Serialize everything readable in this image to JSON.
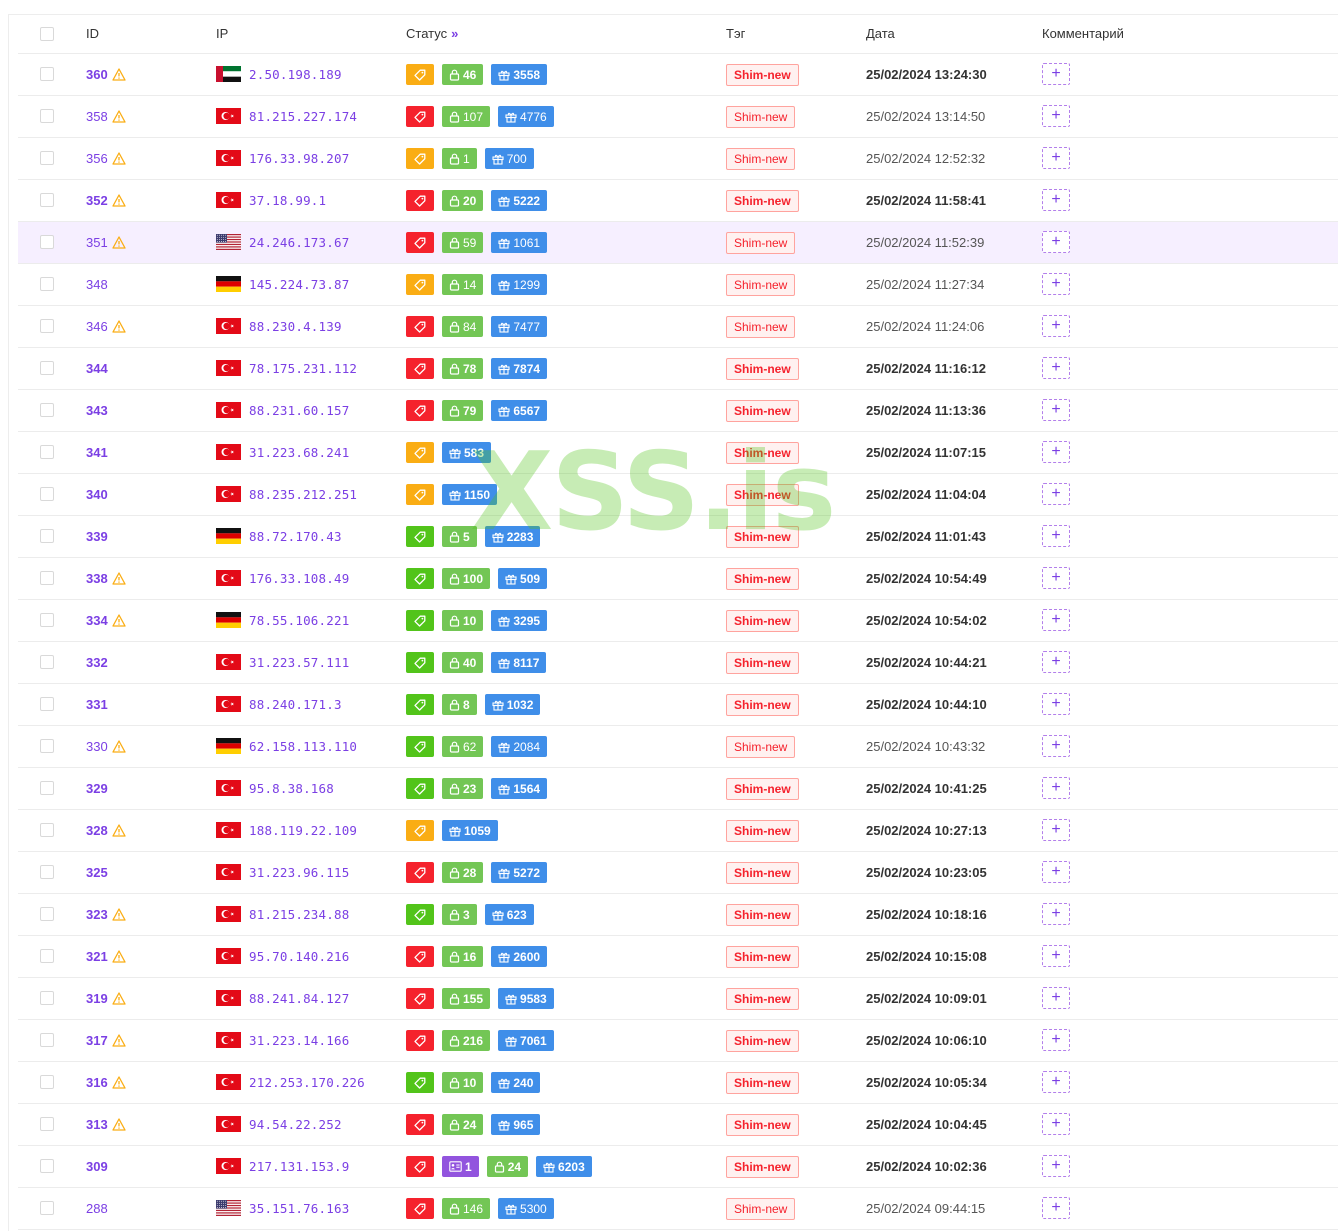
{
  "columns": {
    "id": "ID",
    "ip": "IP",
    "status": "Статус",
    "tag": "Тэг",
    "date": "Дата",
    "comment": "Комментарий"
  },
  "status_sort_icon": "double-chevron-right-icon",
  "add_comment_symbol": "+",
  "watermark": "XSS.is",
  "colors": {
    "accent": "#7b3fe4",
    "status_red": "#f5222d",
    "status_orange": "#faad14",
    "status_green": "#52c41a",
    "lock_green": "#73c655",
    "gift_blue": "#3f8ee9",
    "profile_purple": "#9254de"
  },
  "rows": [
    {
      "id": "360",
      "warn": true,
      "bold": true,
      "flag": "ae",
      "ip": "2.50.198.189",
      "status": "orange",
      "badges": [
        {
          "k": "lock",
          "v": "46"
        },
        {
          "k": "gift",
          "v": "3558"
        }
      ],
      "tag": "Shim-new",
      "date": "25/02/2024 13:24:30"
    },
    {
      "id": "358",
      "warn": true,
      "bold": false,
      "flag": "tr",
      "ip": "81.215.227.174",
      "status": "red",
      "badges": [
        {
          "k": "lock",
          "v": "107"
        },
        {
          "k": "gift",
          "v": "4776"
        }
      ],
      "tag": "Shim-new",
      "date": "25/02/2024 13:14:50"
    },
    {
      "id": "356",
      "warn": true,
      "bold": false,
      "flag": "tr",
      "ip": "176.33.98.207",
      "status": "orange",
      "badges": [
        {
          "k": "lock",
          "v": "1"
        },
        {
          "k": "gift",
          "v": "700"
        }
      ],
      "tag": "Shim-new",
      "date": "25/02/2024 12:52:32"
    },
    {
      "id": "352",
      "warn": true,
      "bold": true,
      "flag": "tr",
      "ip": "37.18.99.1",
      "status": "red",
      "badges": [
        {
          "k": "lock",
          "v": "20"
        },
        {
          "k": "gift",
          "v": "5222"
        }
      ],
      "tag": "Shim-new",
      "date": "25/02/2024 11:58:41"
    },
    {
      "id": "351",
      "warn": true,
      "bold": false,
      "flag": "us",
      "ip": "24.246.173.67",
      "status": "red",
      "badges": [
        {
          "k": "lock",
          "v": "59"
        },
        {
          "k": "gift",
          "v": "1061"
        }
      ],
      "tag": "Shim-new",
      "date": "25/02/2024 11:52:39",
      "hl": true
    },
    {
      "id": "348",
      "warn": false,
      "bold": false,
      "flag": "de",
      "ip": "145.224.73.87",
      "status": "orange",
      "badges": [
        {
          "k": "lock",
          "v": "14"
        },
        {
          "k": "gift",
          "v": "1299"
        }
      ],
      "tag": "Shim-new",
      "date": "25/02/2024 11:27:34"
    },
    {
      "id": "346",
      "warn": true,
      "bold": false,
      "flag": "tr",
      "ip": "88.230.4.139",
      "status": "red",
      "badges": [
        {
          "k": "lock",
          "v": "84"
        },
        {
          "k": "gift",
          "v": "7477"
        }
      ],
      "tag": "Shim-new",
      "date": "25/02/2024 11:24:06"
    },
    {
      "id": "344",
      "warn": false,
      "bold": true,
      "flag": "tr",
      "ip": "78.175.231.112",
      "status": "red",
      "badges": [
        {
          "k": "lock",
          "v": "78"
        },
        {
          "k": "gift",
          "v": "7874"
        }
      ],
      "tag": "Shim-new",
      "date": "25/02/2024 11:16:12"
    },
    {
      "id": "343",
      "warn": false,
      "bold": true,
      "flag": "tr",
      "ip": "88.231.60.157",
      "status": "red",
      "badges": [
        {
          "k": "lock",
          "v": "79"
        },
        {
          "k": "gift",
          "v": "6567"
        }
      ],
      "tag": "Shim-new",
      "date": "25/02/2024 11:13:36"
    },
    {
      "id": "341",
      "warn": false,
      "bold": true,
      "flag": "tr",
      "ip": "31.223.68.241",
      "status": "orange",
      "badges": [
        {
          "k": "gift",
          "v": "583"
        }
      ],
      "tag": "Shim-new",
      "date": "25/02/2024 11:07:15"
    },
    {
      "id": "340",
      "warn": false,
      "bold": true,
      "flag": "tr",
      "ip": "88.235.212.251",
      "status": "orange",
      "badges": [
        {
          "k": "gift",
          "v": "1150"
        }
      ],
      "tag": "Shim-new",
      "date": "25/02/2024 11:04:04"
    },
    {
      "id": "339",
      "warn": false,
      "bold": true,
      "flag": "de",
      "ip": "88.72.170.43",
      "status": "green",
      "badges": [
        {
          "k": "lock",
          "v": "5"
        },
        {
          "k": "gift",
          "v": "2283"
        }
      ],
      "tag": "Shim-new",
      "date": "25/02/2024 11:01:43"
    },
    {
      "id": "338",
      "warn": true,
      "bold": true,
      "flag": "tr",
      "ip": "176.33.108.49",
      "status": "green",
      "badges": [
        {
          "k": "lock",
          "v": "100"
        },
        {
          "k": "gift",
          "v": "509"
        }
      ],
      "tag": "Shim-new",
      "date": "25/02/2024 10:54:49"
    },
    {
      "id": "334",
      "warn": true,
      "bold": true,
      "flag": "de",
      "ip": "78.55.106.221",
      "status": "green",
      "badges": [
        {
          "k": "lock",
          "v": "10"
        },
        {
          "k": "gift",
          "v": "3295"
        }
      ],
      "tag": "Shim-new",
      "date": "25/02/2024 10:54:02"
    },
    {
      "id": "332",
      "warn": false,
      "bold": true,
      "flag": "tr",
      "ip": "31.223.57.111",
      "status": "green",
      "badges": [
        {
          "k": "lock",
          "v": "40"
        },
        {
          "k": "gift",
          "v": "8117"
        }
      ],
      "tag": "Shim-new",
      "date": "25/02/2024 10:44:21"
    },
    {
      "id": "331",
      "warn": false,
      "bold": true,
      "flag": "tr",
      "ip": "88.240.171.3",
      "status": "green",
      "badges": [
        {
          "k": "lock",
          "v": "8"
        },
        {
          "k": "gift",
          "v": "1032"
        }
      ],
      "tag": "Shim-new",
      "date": "25/02/2024 10:44:10"
    },
    {
      "id": "330",
      "warn": true,
      "bold": false,
      "flag": "de",
      "ip": "62.158.113.110",
      "status": "green",
      "badges": [
        {
          "k": "lock",
          "v": "62"
        },
        {
          "k": "gift",
          "v": "2084"
        }
      ],
      "tag": "Shim-new",
      "date": "25/02/2024 10:43:32"
    },
    {
      "id": "329",
      "warn": false,
      "bold": true,
      "flag": "tr",
      "ip": "95.8.38.168",
      "status": "green",
      "badges": [
        {
          "k": "lock",
          "v": "23"
        },
        {
          "k": "gift",
          "v": "1564"
        }
      ],
      "tag": "Shim-new",
      "date": "25/02/2024 10:41:25"
    },
    {
      "id": "328",
      "warn": true,
      "bold": true,
      "flag": "tr",
      "ip": "188.119.22.109",
      "status": "orange",
      "badges": [
        {
          "k": "gift",
          "v": "1059"
        }
      ],
      "tag": "Shim-new",
      "date": "25/02/2024 10:27:13"
    },
    {
      "id": "325",
      "warn": false,
      "bold": true,
      "flag": "tr",
      "ip": "31.223.96.115",
      "status": "red",
      "badges": [
        {
          "k": "lock",
          "v": "28"
        },
        {
          "k": "gift",
          "v": "5272"
        }
      ],
      "tag": "Shim-new",
      "date": "25/02/2024 10:23:05"
    },
    {
      "id": "323",
      "warn": true,
      "bold": true,
      "flag": "tr",
      "ip": "81.215.234.88",
      "status": "green",
      "badges": [
        {
          "k": "lock",
          "v": "3"
        },
        {
          "k": "gift",
          "v": "623"
        }
      ],
      "tag": "Shim-new",
      "date": "25/02/2024 10:18:16"
    },
    {
      "id": "321",
      "warn": true,
      "bold": true,
      "flag": "tr",
      "ip": "95.70.140.216",
      "status": "red",
      "badges": [
        {
          "k": "lock",
          "v": "16"
        },
        {
          "k": "gift",
          "v": "2600"
        }
      ],
      "tag": "Shim-new",
      "date": "25/02/2024 10:15:08"
    },
    {
      "id": "319",
      "warn": true,
      "bold": true,
      "flag": "tr",
      "ip": "88.241.84.127",
      "status": "red",
      "badges": [
        {
          "k": "lock",
          "v": "155"
        },
        {
          "k": "gift",
          "v": "9583"
        }
      ],
      "tag": "Shim-new",
      "date": "25/02/2024 10:09:01"
    },
    {
      "id": "317",
      "warn": true,
      "bold": true,
      "flag": "tr",
      "ip": "31.223.14.166",
      "status": "red",
      "badges": [
        {
          "k": "lock",
          "v": "216"
        },
        {
          "k": "gift",
          "v": "7061"
        }
      ],
      "tag": "Shim-new",
      "date": "25/02/2024 10:06:10"
    },
    {
      "id": "316",
      "warn": true,
      "bold": true,
      "flag": "tr",
      "ip": "212.253.170.226",
      "status": "green",
      "badges": [
        {
          "k": "lock",
          "v": "10"
        },
        {
          "k": "gift",
          "v": "240"
        }
      ],
      "tag": "Shim-new",
      "date": "25/02/2024 10:05:34"
    },
    {
      "id": "313",
      "warn": true,
      "bold": true,
      "flag": "tr",
      "ip": "94.54.22.252",
      "status": "red",
      "badges": [
        {
          "k": "lock",
          "v": "24"
        },
        {
          "k": "gift",
          "v": "965"
        }
      ],
      "tag": "Shim-new",
      "date": "25/02/2024 10:04:45"
    },
    {
      "id": "309",
      "warn": false,
      "bold": true,
      "flag": "tr",
      "ip": "217.131.153.9",
      "status": "red",
      "badges": [
        {
          "k": "profile",
          "v": "1"
        },
        {
          "k": "lock",
          "v": "24"
        },
        {
          "k": "gift",
          "v": "6203"
        }
      ],
      "tag": "Shim-new",
      "date": "25/02/2024 10:02:36"
    },
    {
      "id": "288",
      "warn": false,
      "bold": false,
      "flag": "us",
      "ip": "35.151.76.163",
      "status": "red",
      "badges": [
        {
          "k": "lock",
          "v": "146"
        },
        {
          "k": "gift",
          "v": "5300"
        }
      ],
      "tag": "Shim-new",
      "date": "25/02/2024 09:44:15"
    }
  ]
}
